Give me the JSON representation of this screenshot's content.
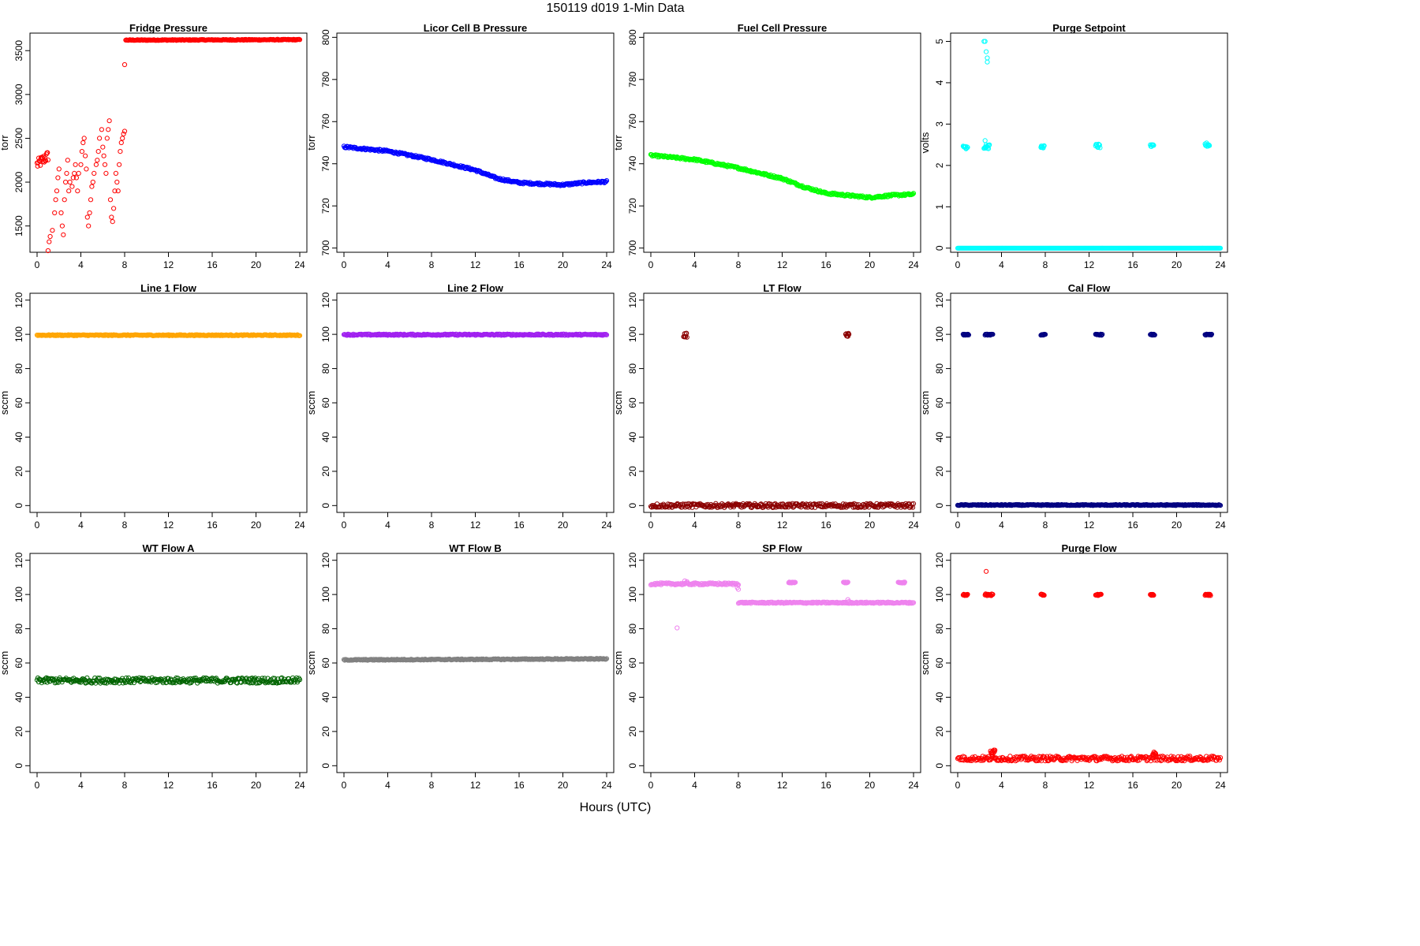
{
  "page": {
    "title": "150119   d019   1-Min Data",
    "xlabel": "Hours (UTC)"
  },
  "chart_data": [
    {
      "type": "scatter",
      "title": "Fridge Pressure",
      "ylabel": "torr",
      "color": "#ff0000",
      "xlim": [
        0,
        24
      ],
      "ylim": [
        1200,
        3700
      ],
      "xticks": [
        0,
        4,
        8,
        12,
        16,
        20,
        24
      ],
      "yticks": [
        1500,
        2000,
        2500,
        3000,
        3500
      ],
      "xtick_labels": [
        "0",
        "4",
        "8",
        "12",
        "16",
        "20",
        "24"
      ],
      "ytick_labels": [
        "1500",
        "2000",
        "2500",
        "3000",
        "3500"
      ],
      "segments": [
        {
          "x": [
            0,
            1.0
          ],
          "y": [
            2200,
            2300
          ],
          "noise": 60
        },
        {
          "x": [
            8.1,
            24
          ],
          "y": [
            3620,
            3625
          ],
          "noise": 5
        }
      ],
      "points": [
        [
          1.0,
          1200
        ],
        [
          1.1,
          1320
        ],
        [
          1.2,
          1380
        ],
        [
          1.4,
          1450
        ],
        [
          1.6,
          1650
        ],
        [
          1.7,
          1800
        ],
        [
          1.8,
          1900
        ],
        [
          1.9,
          2050
        ],
        [
          2.0,
          2150
        ],
        [
          2.2,
          1650
        ],
        [
          2.3,
          1500
        ],
        [
          2.4,
          1400
        ],
        [
          2.5,
          1800
        ],
        [
          2.6,
          2000
        ],
        [
          2.7,
          2100
        ],
        [
          2.8,
          2250
        ],
        [
          2.9,
          1900
        ],
        [
          3.0,
          2000
        ],
        [
          3.2,
          1950
        ],
        [
          3.3,
          2050
        ],
        [
          3.4,
          2100
        ],
        [
          3.5,
          2200
        ],
        [
          3.6,
          2050
        ],
        [
          3.7,
          1900
        ],
        [
          3.8,
          2100
        ],
        [
          4.0,
          2200
        ],
        [
          4.1,
          2350
        ],
        [
          4.2,
          2450
        ],
        [
          4.3,
          2500
        ],
        [
          4.4,
          2300
        ],
        [
          4.5,
          2150
        ],
        [
          4.6,
          1600
        ],
        [
          4.7,
          1500
        ],
        [
          4.8,
          1650
        ],
        [
          4.9,
          1800
        ],
        [
          5.0,
          1950
        ],
        [
          5.1,
          2000
        ],
        [
          5.2,
          2100
        ],
        [
          5.4,
          2200
        ],
        [
          5.5,
          2250
        ],
        [
          5.6,
          2350
        ],
        [
          5.7,
          2500
        ],
        [
          5.9,
          2600
        ],
        [
          6.0,
          2400
        ],
        [
          6.1,
          2300
        ],
        [
          6.2,
          2200
        ],
        [
          6.3,
          2100
        ],
        [
          6.4,
          2500
        ],
        [
          6.5,
          2600
        ],
        [
          6.6,
          2700
        ],
        [
          6.7,
          1800
        ],
        [
          6.8,
          1600
        ],
        [
          6.9,
          1550
        ],
        [
          7.0,
          1700
        ],
        [
          7.1,
          1900
        ],
        [
          7.2,
          2100
        ],
        [
          7.3,
          2000
        ],
        [
          7.4,
          1900
        ],
        [
          7.5,
          2200
        ],
        [
          7.6,
          2350
        ],
        [
          7.7,
          2450
        ],
        [
          7.8,
          2500
        ],
        [
          7.9,
          2550
        ],
        [
          8.0,
          2580
        ],
        [
          8.0,
          3340
        ]
      ]
    },
    {
      "type": "scatter",
      "title": "Licor Cell B Pressure",
      "ylabel": "torr",
      "color": "#0000ff",
      "xlim": [
        0,
        24
      ],
      "ylim": [
        698,
        802
      ],
      "xticks": [
        0,
        4,
        8,
        12,
        16,
        20,
        24
      ],
      "yticks": [
        700,
        720,
        740,
        760,
        780,
        800
      ],
      "xtick_labels": [
        "0",
        "4",
        "8",
        "12",
        "16",
        "20",
        "24"
      ],
      "ytick_labels": [
        "700",
        "720",
        "740",
        "760",
        "780",
        "800"
      ],
      "curve": {
        "x": [
          0,
          4,
          8,
          12,
          14,
          16,
          18,
          20,
          22,
          24
        ],
        "y": [
          748,
          746,
          742,
          737,
          733,
          731,
          730.5,
          730,
          731,
          731.5
        ]
      },
      "noise": 0.5
    },
    {
      "type": "scatter",
      "title": "Fuel Cell Pressure",
      "ylabel": "torr",
      "color": "#00ff00",
      "xlim": [
        0,
        24
      ],
      "ylim": [
        698,
        802
      ],
      "xticks": [
        0,
        4,
        8,
        12,
        16,
        20,
        24
      ],
      "yticks": [
        700,
        720,
        740,
        760,
        780,
        800
      ],
      "xtick_labels": [
        "0",
        "4",
        "8",
        "12",
        "16",
        "20",
        "24"
      ],
      "ytick_labels": [
        "700",
        "720",
        "740",
        "760",
        "780",
        "800"
      ],
      "curve": {
        "x": [
          0,
          4,
          8,
          12,
          14,
          16,
          18,
          20,
          22,
          24
        ],
        "y": [
          744,
          742,
          738,
          733,
          729,
          726,
          725,
          724,
          725,
          725.5
        ]
      },
      "noise": 0.5
    },
    {
      "type": "scatter",
      "title": "Purge Setpoint",
      "ylabel": "volts",
      "color": "#00ffff",
      "xlim": [
        0,
        24
      ],
      "ylim": [
        -0.1,
        5.2
      ],
      "xticks": [
        0,
        4,
        8,
        12,
        16,
        20,
        24
      ],
      "yticks": [
        0,
        1,
        2,
        3,
        4,
        5
      ],
      "xtick_labels": [
        "0",
        "4",
        "8",
        "12",
        "16",
        "20",
        "24"
      ],
      "ytick_labels": [
        "0",
        "1",
        "2",
        "3",
        "4",
        "5"
      ],
      "segments": [
        {
          "x": [
            0,
            24
          ],
          "y": [
            0,
            0
          ],
          "noise": 0
        }
      ],
      "clusters": [
        {
          "x": [
            0.5,
            0.9
          ],
          "y": 2.45,
          "noise": 0.05
        },
        {
          "x": [
            2.4,
            2.9
          ],
          "y": 2.45,
          "noise": 0.05
        },
        {
          "x": [
            7.6,
            7.9
          ],
          "y": 2.45,
          "noise": 0.03
        },
        {
          "x": [
            12.6,
            13.0
          ],
          "y": 2.47,
          "noise": 0.05
        },
        {
          "x": [
            17.6,
            17.9
          ],
          "y": 2.47,
          "noise": 0.03
        },
        {
          "x": [
            22.6,
            23.0
          ],
          "y": 2.5,
          "noise": 0.05
        }
      ],
      "points": [
        [
          2.4,
          5.0
        ],
        [
          2.5,
          5.0
        ],
        [
          2.6,
          4.75
        ],
        [
          2.7,
          4.6
        ],
        [
          2.7,
          4.5
        ],
        [
          2.5,
          2.6
        ],
        [
          2.6,
          2.5
        ]
      ]
    },
    {
      "type": "scatter",
      "title": "Line 1 Flow",
      "ylabel": "sccm",
      "color": "#ffa500",
      "xlim": [
        0,
        24
      ],
      "ylim": [
        -4,
        124
      ],
      "xticks": [
        0,
        4,
        8,
        12,
        16,
        20,
        24
      ],
      "yticks": [
        0,
        20,
        40,
        60,
        80,
        100,
        120
      ],
      "xtick_labels": [
        "0",
        "4",
        "8",
        "12",
        "16",
        "20",
        "24"
      ],
      "ytick_labels": [
        "0",
        "20",
        "40",
        "60",
        "80",
        "100",
        "120"
      ],
      "segments": [
        {
          "x": [
            0,
            24
          ],
          "y": [
            99.5,
            99.5
          ],
          "noise": 0.3
        }
      ]
    },
    {
      "type": "scatter",
      "title": "Line 2 Flow",
      "ylabel": "sccm",
      "color": "#a020f0",
      "xlim": [
        0,
        24
      ],
      "ylim": [
        -4,
        124
      ],
      "xticks": [
        0,
        4,
        8,
        12,
        16,
        20,
        24
      ],
      "yticks": [
        0,
        20,
        40,
        60,
        80,
        100,
        120
      ],
      "xtick_labels": [
        "0",
        "4",
        "8",
        "12",
        "16",
        "20",
        "24"
      ],
      "ytick_labels": [
        "0",
        "20",
        "40",
        "60",
        "80",
        "100",
        "120"
      ],
      "segments": [
        {
          "x": [
            0,
            24
          ],
          "y": [
            99.8,
            99.8
          ],
          "noise": 0.4
        }
      ]
    },
    {
      "type": "scatter",
      "title": "LT Flow",
      "ylabel": "sccm",
      "color": "#8b0000",
      "xlim": [
        0,
        24
      ],
      "ylim": [
        -4,
        124
      ],
      "xticks": [
        0,
        4,
        8,
        12,
        16,
        20,
        24
      ],
      "yticks": [
        0,
        20,
        40,
        60,
        80,
        100,
        120
      ],
      "xtick_labels": [
        "0",
        "4",
        "8",
        "12",
        "16",
        "20",
        "24"
      ],
      "ytick_labels": [
        "0",
        "20",
        "40",
        "60",
        "80",
        "100",
        "120"
      ],
      "segments": [
        {
          "x": [
            0,
            24
          ],
          "y": [
            0,
            0
          ],
          "noise": 1.2
        }
      ],
      "clusters": [
        {
          "x": [
            3.0,
            3.3
          ],
          "y": 99.5,
          "noise": 1.2
        },
        {
          "x": [
            17.8,
            18.1
          ],
          "y": 99.5,
          "noise": 1.2
        }
      ]
    },
    {
      "type": "scatter",
      "title": "Cal Flow",
      "ylabel": "sccm",
      "color": "#000080",
      "xlim": [
        0,
        24
      ],
      "ylim": [
        -4,
        124
      ],
      "xticks": [
        0,
        4,
        8,
        12,
        16,
        20,
        24
      ],
      "yticks": [
        0,
        20,
        40,
        60,
        80,
        100,
        120
      ],
      "xtick_labels": [
        "0",
        "4",
        "8",
        "12",
        "16",
        "20",
        "24"
      ],
      "ytick_labels": [
        "0",
        "20",
        "40",
        "60",
        "80",
        "100",
        "120"
      ],
      "segments": [
        {
          "x": [
            0,
            24
          ],
          "y": [
            0.3,
            0.3
          ],
          "noise": 0.3
        }
      ],
      "clusters": [
        {
          "x": [
            0.5,
            1.0
          ],
          "y": 99.8,
          "noise": 0.3
        },
        {
          "x": [
            2.5,
            3.2
          ],
          "y": 99.8,
          "noise": 0.3
        },
        {
          "x": [
            7.6,
            8.0
          ],
          "y": 99.8,
          "noise": 0.3
        },
        {
          "x": [
            12.6,
            13.2
          ],
          "y": 99.8,
          "noise": 0.3
        },
        {
          "x": [
            17.6,
            18.0
          ],
          "y": 99.8,
          "noise": 0.3
        },
        {
          "x": [
            22.6,
            23.2
          ],
          "y": 99.8,
          "noise": 0.3
        }
      ]
    },
    {
      "type": "scatter",
      "title": "WT Flow A",
      "ylabel": "sccm",
      "color": "#006400",
      "xlim": [
        0,
        24
      ],
      "ylim": [
        -4,
        124
      ],
      "xticks": [
        0,
        4,
        8,
        12,
        16,
        20,
        24
      ],
      "yticks": [
        0,
        20,
        40,
        60,
        80,
        100,
        120
      ],
      "xtick_labels": [
        "0",
        "4",
        "8",
        "12",
        "16",
        "20",
        "24"
      ],
      "ytick_labels": [
        "0",
        "20",
        "40",
        "60",
        "80",
        "100",
        "120"
      ],
      "segments": [
        {
          "x": [
            0,
            24
          ],
          "y": [
            49.8,
            49.8
          ],
          "noise": 1.6
        }
      ]
    },
    {
      "type": "scatter",
      "title": "WT Flow B",
      "ylabel": "sccm",
      "color": "#808080",
      "xlim": [
        0,
        24
      ],
      "ylim": [
        -4,
        124
      ],
      "xticks": [
        0,
        4,
        8,
        12,
        16,
        20,
        24
      ],
      "yticks": [
        0,
        20,
        40,
        60,
        80,
        100,
        120
      ],
      "xtick_labels": [
        "0",
        "4",
        "8",
        "12",
        "16",
        "20",
        "24"
      ],
      "ytick_labels": [
        "0",
        "20",
        "40",
        "60",
        "80",
        "100",
        "120"
      ],
      "segments": [
        {
          "x": [
            0,
            24
          ],
          "y": [
            61.8,
            62.4
          ],
          "noise": 0.3
        }
      ]
    },
    {
      "type": "scatter",
      "title": "SP Flow",
      "ylabel": "sccm",
      "color": "#ee82ee",
      "xlim": [
        0,
        24
      ],
      "ylim": [
        -4,
        124
      ],
      "xticks": [
        0,
        4,
        8,
        12,
        16,
        20,
        24
      ],
      "yticks": [
        0,
        20,
        40,
        60,
        80,
        100,
        120
      ],
      "xtick_labels": [
        "0",
        "4",
        "8",
        "12",
        "16",
        "20",
        "24"
      ],
      "ytick_labels": [
        "0",
        "20",
        "40",
        "60",
        "80",
        "100",
        "120"
      ],
      "segments": [
        {
          "x": [
            0,
            8.0
          ],
          "y": [
            106.2,
            106.2
          ],
          "noise": 0.6
        },
        {
          "x": [
            8.0,
            24
          ],
          "y": [
            95.2,
            95.2
          ],
          "noise": 0.4
        }
      ],
      "clusters": [
        {
          "x": [
            12.6,
            13.2
          ],
          "y": 107,
          "noise": 0.3
        },
        {
          "x": [
            17.6,
            18.0
          ],
          "y": 107,
          "noise": 0.3
        },
        {
          "x": [
            22.6,
            23.2
          ],
          "y": 107,
          "noise": 0.3
        }
      ],
      "points": [
        [
          2.4,
          80.5
        ],
        [
          3.1,
          108
        ],
        [
          3.3,
          107.5
        ],
        [
          7.9,
          104
        ],
        [
          8.0,
          103
        ],
        [
          18.0,
          97
        ],
        [
          18.1,
          96
        ]
      ]
    },
    {
      "type": "scatter",
      "title": "Purge Flow",
      "ylabel": "sccm",
      "color": "#ff0000",
      "xlim": [
        0,
        24
      ],
      "ylim": [
        -4,
        124
      ],
      "xticks": [
        0,
        4,
        8,
        12,
        16,
        20,
        24
      ],
      "yticks": [
        0,
        20,
        40,
        60,
        80,
        100,
        120
      ],
      "xtick_labels": [
        "0",
        "4",
        "8",
        "12",
        "16",
        "20",
        "24"
      ],
      "ytick_labels": [
        "0",
        "20",
        "40",
        "60",
        "80",
        "100",
        "120"
      ],
      "segments": [
        {
          "x": [
            0,
            24
          ],
          "y": [
            4.2,
            4.2
          ],
          "noise": 1.4
        }
      ],
      "clusters": [
        {
          "x": [
            0.5,
            0.9
          ],
          "y": 99.8,
          "noise": 0.4
        },
        {
          "x": [
            2.5,
            3.2
          ],
          "y": 99.8,
          "noise": 0.6
        },
        {
          "x": [
            7.6,
            7.9
          ],
          "y": 99.8,
          "noise": 0.4
        },
        {
          "x": [
            12.6,
            13.1
          ],
          "y": 99.8,
          "noise": 0.4
        },
        {
          "x": [
            17.6,
            17.9
          ],
          "y": 99.8,
          "noise": 0.4
        },
        {
          "x": [
            22.6,
            23.1
          ],
          "y": 99.8,
          "noise": 0.4
        },
        {
          "x": [
            3.0,
            3.4
          ],
          "y": 8,
          "noise": 1.5
        },
        {
          "x": [
            17.8,
            18.1
          ],
          "y": 7,
          "noise": 1.0
        }
      ],
      "points": [
        [
          2.6,
          113.5
        ]
      ]
    }
  ]
}
